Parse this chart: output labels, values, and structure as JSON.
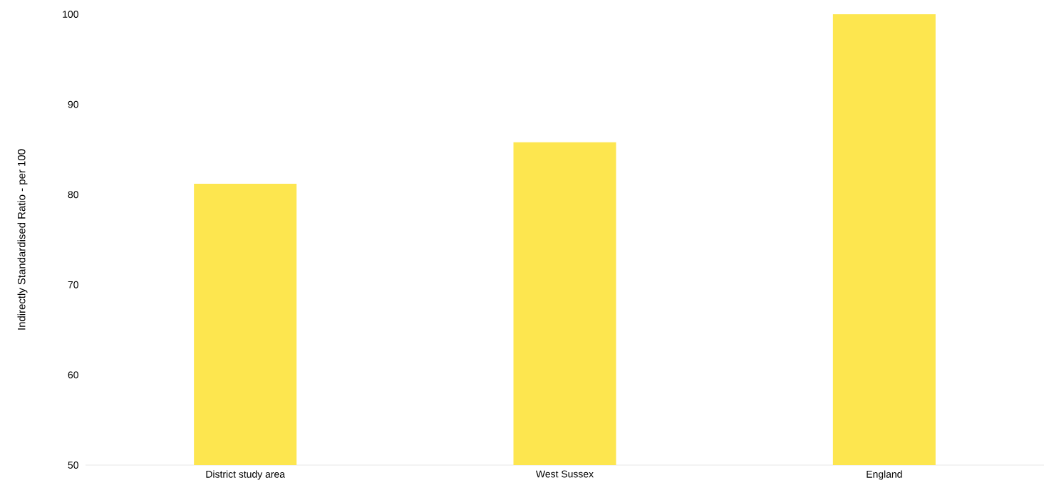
{
  "chart_data": {
    "type": "bar",
    "ylabel": "Indirectly Standardised Ratio - per 100",
    "categories": [
      "District study area",
      "West Sussex",
      "England"
    ],
    "values": [
      81.2,
      85.8,
      100
    ],
    "color": "#fde64f",
    "ylim": [
      50,
      100
    ],
    "yticks": [
      50,
      60,
      70,
      80,
      90,
      100
    ]
  }
}
